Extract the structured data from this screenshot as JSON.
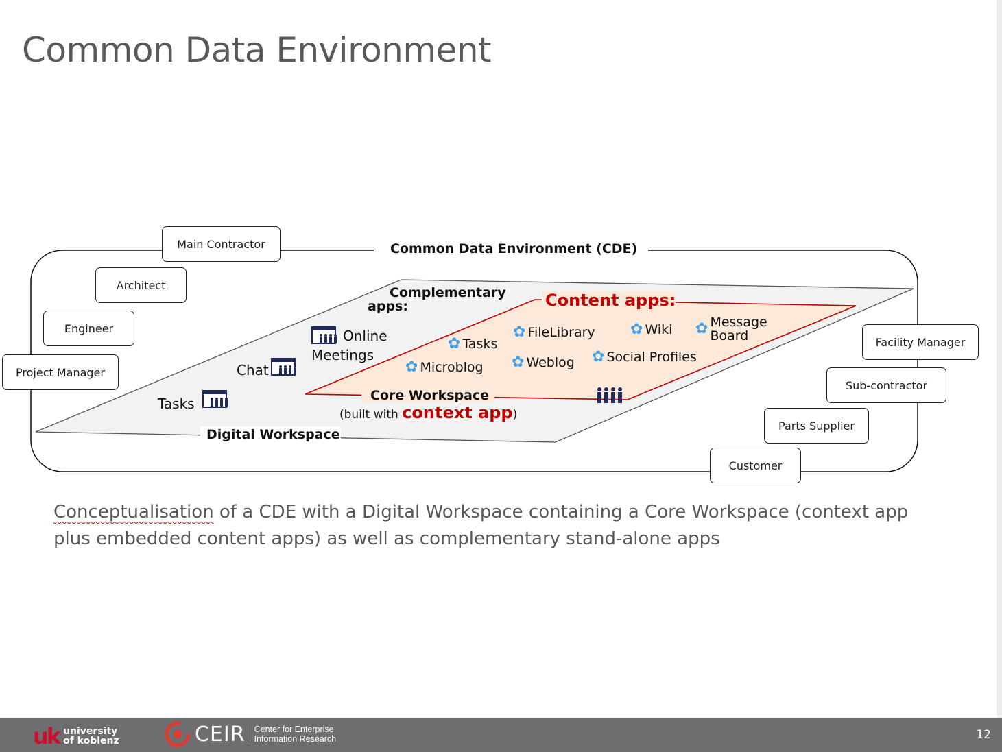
{
  "slide": {
    "title": "Common Data Environment",
    "page_number": "12"
  },
  "diagram": {
    "cde_label": "Common Data Environment (CDE)",
    "digital_workspace_label": "Digital Workspace",
    "complementary_label_line1": "Complementary",
    "complementary_label_line2": "apps:",
    "complementary_apps": [
      {
        "label_line1": "Online",
        "label_line2": "Meetings"
      },
      {
        "label": "Chat"
      },
      {
        "label": "Tasks"
      }
    ],
    "content_apps_label": "Content apps:",
    "content_apps": [
      "Tasks",
      "FileLibrary",
      "Wiki",
      "Microblog",
      "Weblog",
      "Social Profiles"
    ],
    "message_board": {
      "line1": "Message",
      "line2": "Board"
    },
    "core_workspace_label": "Core Workspace",
    "core_built_prefix": "(built with ",
    "core_context_app": "context app",
    "core_built_suffix": ")",
    "roles": [
      "Main Contractor",
      "Architect",
      "Engineer",
      "Project Manager",
      "Facility Manager",
      "Sub-contractor",
      "Parts Supplier",
      "Customer"
    ],
    "colors": {
      "accent_red": "#c00000",
      "gear_blue": "#41a0e8",
      "workspace_fill": "#f2f2f2",
      "core_fill": "#fde9d9",
      "icon_navy": "#1f2a5a"
    }
  },
  "caption": {
    "underlined_word": "Conceptualisation",
    "rest_line1": " of a CDE with a Digital Workspace containing a Core Workspace (context app",
    "line2": "plus embedded content apps) as well as complementary stand-alone apps"
  },
  "footer": {
    "uk_mark": "uk",
    "uk_line1": "university",
    "uk_line2": "of koblenz",
    "ceir_word": "CEIR",
    "ceir_line1": "Center for Enterprise",
    "ceir_line2": "Information Research"
  }
}
